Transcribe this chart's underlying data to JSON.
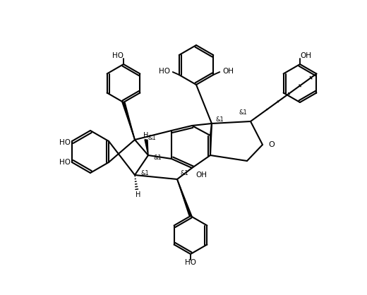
{
  "bg_color": "#ffffff",
  "line_color": "#000000",
  "lw": 1.5,
  "lws": 1.1,
  "fs": 7.5
}
